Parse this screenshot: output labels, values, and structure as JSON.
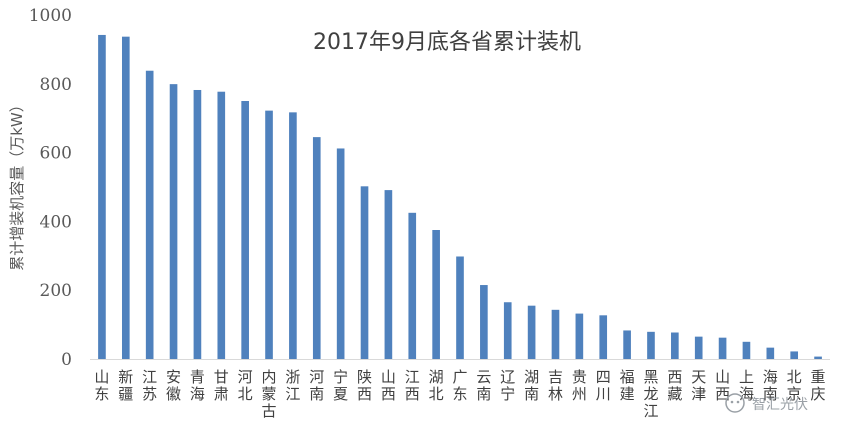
{
  "chart_data": {
    "type": "bar",
    "title": "2017年9月底各省累计装机",
    "ylabel": "累计增装机容量（万kW）",
    "xlabel": "",
    "ylim": [
      0,
      1000
    ],
    "yticks": [
      0,
      200,
      400,
      600,
      800,
      1000
    ],
    "grid": false,
    "bar_color": "#4f81bd",
    "categories": [
      "山东",
      "新疆",
      "江苏",
      "安徽",
      "青海",
      "甘肃",
      "河北",
      "内蒙古",
      "浙江",
      "河南",
      "宁夏",
      "陕西",
      "山西",
      "江西",
      "湖北",
      "广东",
      "云南",
      "辽宁",
      "湖南",
      "吉林",
      "贵州",
      "四川",
      "福建",
      "黑龙江",
      "西藏",
      "天津",
      "山西",
      "上海",
      "海南",
      "北京",
      "重庆"
    ],
    "values": [
      942,
      937,
      838,
      799,
      782,
      777,
      750,
      722,
      717,
      645,
      612,
      502,
      491,
      425,
      375,
      298,
      215,
      165,
      155,
      143,
      132,
      127,
      83,
      79,
      77,
      65,
      62,
      50,
      33,
      22,
      7
    ]
  },
  "watermark": {
    "icon": "wechat-icon",
    "text": "智汇光伏"
  }
}
